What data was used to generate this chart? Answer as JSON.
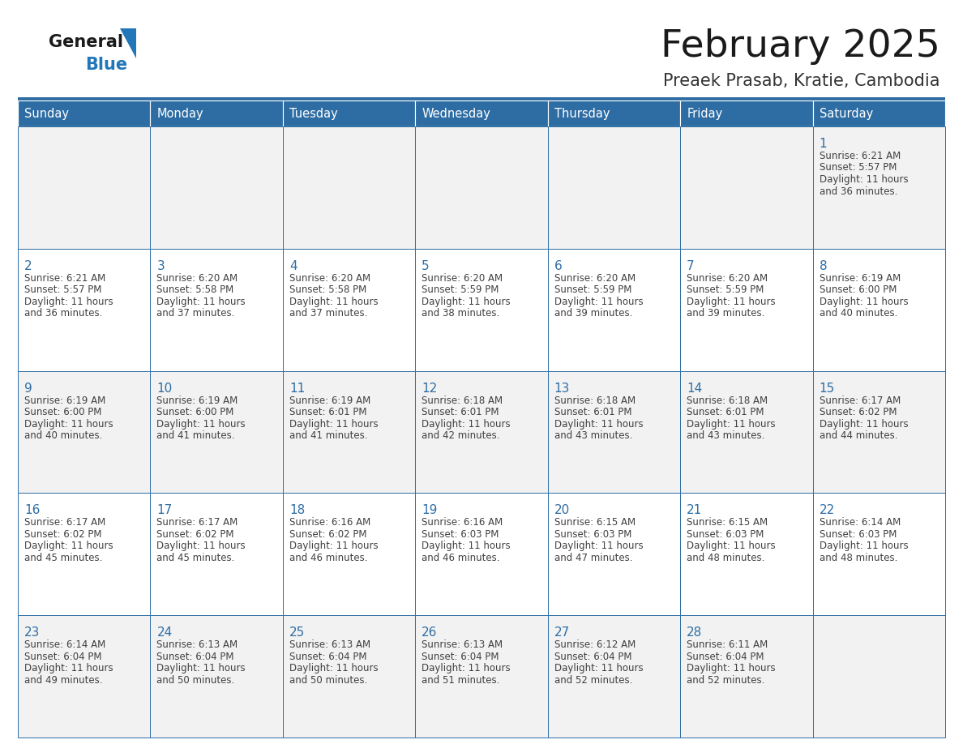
{
  "title": "February 2025",
  "subtitle": "Preaek Prasab, Kratie, Cambodia",
  "days_of_week": [
    "Sunday",
    "Monday",
    "Tuesday",
    "Wednesday",
    "Thursday",
    "Friday",
    "Saturday"
  ],
  "header_bg": "#2E6DA4",
  "header_text": "#FFFFFF",
  "cell_bg_odd": "#F2F2F2",
  "cell_bg_even": "#FFFFFF",
  "cell_border": "#2E6DA4",
  "day_num_color": "#2E6DA4",
  "info_text_color": "#404040",
  "title_color": "#1a1a1a",
  "subtitle_color": "#333333",
  "logo_general_color": "#1a1a1a",
  "logo_blue_color": "#2177B8",
  "calendar": [
    [
      null,
      null,
      null,
      null,
      null,
      null,
      {
        "day": 1,
        "sunrise": "6:21 AM",
        "sunset": "5:57 PM",
        "daylight": "11 hours",
        "daylight2": "and 36 minutes."
      }
    ],
    [
      {
        "day": 2,
        "sunrise": "6:21 AM",
        "sunset": "5:57 PM",
        "daylight": "11 hours",
        "daylight2": "and 36 minutes."
      },
      {
        "day": 3,
        "sunrise": "6:20 AM",
        "sunset": "5:58 PM",
        "daylight": "11 hours",
        "daylight2": "and 37 minutes."
      },
      {
        "day": 4,
        "sunrise": "6:20 AM",
        "sunset": "5:58 PM",
        "daylight": "11 hours",
        "daylight2": "and 37 minutes."
      },
      {
        "day": 5,
        "sunrise": "6:20 AM",
        "sunset": "5:59 PM",
        "daylight": "11 hours",
        "daylight2": "and 38 minutes."
      },
      {
        "day": 6,
        "sunrise": "6:20 AM",
        "sunset": "5:59 PM",
        "daylight": "11 hours",
        "daylight2": "and 39 minutes."
      },
      {
        "day": 7,
        "sunrise": "6:20 AM",
        "sunset": "5:59 PM",
        "daylight": "11 hours",
        "daylight2": "and 39 minutes."
      },
      {
        "day": 8,
        "sunrise": "6:19 AM",
        "sunset": "6:00 PM",
        "daylight": "11 hours",
        "daylight2": "and 40 minutes."
      }
    ],
    [
      {
        "day": 9,
        "sunrise": "6:19 AM",
        "sunset": "6:00 PM",
        "daylight": "11 hours",
        "daylight2": "and 40 minutes."
      },
      {
        "day": 10,
        "sunrise": "6:19 AM",
        "sunset": "6:00 PM",
        "daylight": "11 hours",
        "daylight2": "and 41 minutes."
      },
      {
        "day": 11,
        "sunrise": "6:19 AM",
        "sunset": "6:01 PM",
        "daylight": "11 hours",
        "daylight2": "and 41 minutes."
      },
      {
        "day": 12,
        "sunrise": "6:18 AM",
        "sunset": "6:01 PM",
        "daylight": "11 hours",
        "daylight2": "and 42 minutes."
      },
      {
        "day": 13,
        "sunrise": "6:18 AM",
        "sunset": "6:01 PM",
        "daylight": "11 hours",
        "daylight2": "and 43 minutes."
      },
      {
        "day": 14,
        "sunrise": "6:18 AM",
        "sunset": "6:01 PM",
        "daylight": "11 hours",
        "daylight2": "and 43 minutes."
      },
      {
        "day": 15,
        "sunrise": "6:17 AM",
        "sunset": "6:02 PM",
        "daylight": "11 hours",
        "daylight2": "and 44 minutes."
      }
    ],
    [
      {
        "day": 16,
        "sunrise": "6:17 AM",
        "sunset": "6:02 PM",
        "daylight": "11 hours",
        "daylight2": "and 45 minutes."
      },
      {
        "day": 17,
        "sunrise": "6:17 AM",
        "sunset": "6:02 PM",
        "daylight": "11 hours",
        "daylight2": "and 45 minutes."
      },
      {
        "day": 18,
        "sunrise": "6:16 AM",
        "sunset": "6:02 PM",
        "daylight": "11 hours",
        "daylight2": "and 46 minutes."
      },
      {
        "day": 19,
        "sunrise": "6:16 AM",
        "sunset": "6:03 PM",
        "daylight": "11 hours",
        "daylight2": "and 46 minutes."
      },
      {
        "day": 20,
        "sunrise": "6:15 AM",
        "sunset": "6:03 PM",
        "daylight": "11 hours",
        "daylight2": "and 47 minutes."
      },
      {
        "day": 21,
        "sunrise": "6:15 AM",
        "sunset": "6:03 PM",
        "daylight": "11 hours",
        "daylight2": "and 48 minutes."
      },
      {
        "day": 22,
        "sunrise": "6:14 AM",
        "sunset": "6:03 PM",
        "daylight": "11 hours",
        "daylight2": "and 48 minutes."
      }
    ],
    [
      {
        "day": 23,
        "sunrise": "6:14 AM",
        "sunset": "6:04 PM",
        "daylight": "11 hours",
        "daylight2": "and 49 minutes."
      },
      {
        "day": 24,
        "sunrise": "6:13 AM",
        "sunset": "6:04 PM",
        "daylight": "11 hours",
        "daylight2": "and 50 minutes."
      },
      {
        "day": 25,
        "sunrise": "6:13 AM",
        "sunset": "6:04 PM",
        "daylight": "11 hours",
        "daylight2": "and 50 minutes."
      },
      {
        "day": 26,
        "sunrise": "6:13 AM",
        "sunset": "6:04 PM",
        "daylight": "11 hours",
        "daylight2": "and 51 minutes."
      },
      {
        "day": 27,
        "sunrise": "6:12 AM",
        "sunset": "6:04 PM",
        "daylight": "11 hours",
        "daylight2": "and 52 minutes."
      },
      {
        "day": 28,
        "sunrise": "6:11 AM",
        "sunset": "6:04 PM",
        "daylight": "11 hours",
        "daylight2": "and 52 minutes."
      },
      null
    ]
  ]
}
